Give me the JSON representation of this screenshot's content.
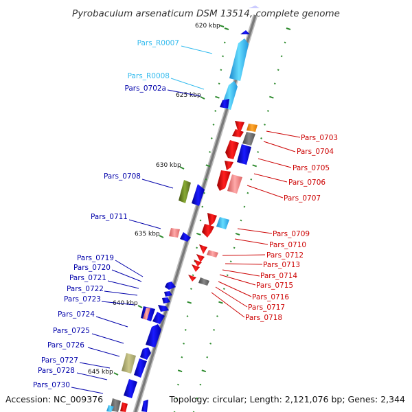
{
  "title": "Pyrobaculum arsenaticum DSM 13514, complete genome",
  "footer": {
    "accession": "Accession: NC_009376",
    "summary": "Topology: circular; Length: 2,121,076 bp; Genes: 2,344"
  },
  "colors": {
    "backbone": "#8a8a8a",
    "tick": "#2e8b2e",
    "left_strand": "#0000ee",
    "right_strand": "#ee0000",
    "rna": "#33bbee"
  },
  "kbp_labels": [
    "620 kbp",
    "625 kbp",
    "630 kbp",
    "635 kbp",
    "640 kbp",
    "645 kbp"
  ],
  "left_labels": [
    {
      "id": "Pars_R0007",
      "color": "#33bbee"
    },
    {
      "id": "Pars_R0008",
      "color": "#33bbee"
    },
    {
      "id": "Pars_0702a",
      "color": "#0000aa"
    },
    {
      "id": "Pars_0708",
      "color": "#0000aa"
    },
    {
      "id": "Pars_0711",
      "color": "#0000aa"
    },
    {
      "id": "Pars_0719",
      "color": "#0000aa"
    },
    {
      "id": "Pars_0720",
      "color": "#0000aa"
    },
    {
      "id": "Pars_0721",
      "color": "#0000aa"
    },
    {
      "id": "Pars_0722",
      "color": "#0000aa"
    },
    {
      "id": "Pars_0723",
      "color": "#0000aa"
    },
    {
      "id": "Pars_0724",
      "color": "#0000aa"
    },
    {
      "id": "Pars_0725",
      "color": "#0000aa"
    },
    {
      "id": "Pars_0726",
      "color": "#0000aa"
    },
    {
      "id": "Pars_0727",
      "color": "#0000aa"
    },
    {
      "id": "Pars_0728",
      "color": "#0000aa"
    },
    {
      "id": "Pars_0730",
      "color": "#0000aa"
    }
  ],
  "right_labels": [
    {
      "id": "Pars_0703",
      "color": "#cc0000"
    },
    {
      "id": "Pars_0704",
      "color": "#cc0000"
    },
    {
      "id": "Pars_0705",
      "color": "#cc0000"
    },
    {
      "id": "Pars_0706",
      "color": "#cc0000"
    },
    {
      "id": "Pars_0707",
      "color": "#cc0000"
    },
    {
      "id": "Pars_0709",
      "color": "#cc0000"
    },
    {
      "id": "Pars_0710",
      "color": "#cc0000"
    },
    {
      "id": "Pars_0712",
      "color": "#cc0000"
    },
    {
      "id": "Pars_0713",
      "color": "#cc0000"
    },
    {
      "id": "Pars_0714",
      "color": "#cc0000"
    },
    {
      "id": "Pars_0715",
      "color": "#cc0000"
    },
    {
      "id": "Pars_0716",
      "color": "#cc0000"
    },
    {
      "id": "Pars_0717",
      "color": "#cc0000"
    },
    {
      "id": "Pars_0718",
      "color": "#cc0000"
    }
  ]
}
